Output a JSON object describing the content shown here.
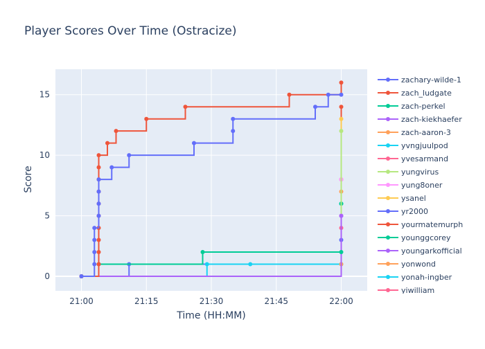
{
  "chart_data": {
    "type": "line",
    "line_shape": "step-after",
    "title": "Player Scores Over Time (Ostracize)",
    "xlabel": "Time (HH:MM)",
    "ylabel": "Score",
    "xlim": [
      "21:00",
      "22:00"
    ],
    "ylim": [
      -1.2,
      17.1
    ],
    "x_ticks": [
      "21:00",
      "21:15",
      "21:30",
      "21:45",
      "22:00"
    ],
    "y_ticks": [
      0,
      5,
      10,
      15
    ],
    "grid": true,
    "legend_position": "right",
    "colors": {
      "plot_background": "#e5ecf6",
      "grid": "#ffffff",
      "text": "#2a3f5f"
    },
    "series": [
      {
        "name": "zachary-wilde-1",
        "color": "#636efa",
        "points": [
          [
            "21:00",
            0
          ],
          [
            "21:03",
            1
          ],
          [
            "21:03",
            2
          ],
          [
            "21:03",
            3
          ],
          [
            "21:03",
            4
          ],
          [
            "21:04",
            5
          ],
          [
            "21:04",
            6
          ],
          [
            "21:04",
            7
          ],
          [
            "21:04",
            8
          ],
          [
            "21:07",
            9
          ],
          [
            "21:11",
            10
          ],
          [
            "21:26",
            11
          ],
          [
            "21:35",
            12
          ],
          [
            "21:35",
            13
          ],
          [
            "21:54",
            14
          ],
          [
            "21:57",
            15
          ],
          [
            "22:00",
            15
          ]
        ]
      },
      {
        "name": "zach_ludgate",
        "color": "#ef553b",
        "points": [
          [
            "21:00",
            0
          ],
          [
            "21:04",
            1
          ],
          [
            "21:04",
            2
          ],
          [
            "21:04",
            3
          ],
          [
            "21:04",
            4
          ],
          [
            "21:04",
            5
          ],
          [
            "21:04",
            6
          ],
          [
            "21:04",
            7
          ],
          [
            "21:04",
            8
          ],
          [
            "21:04",
            9
          ],
          [
            "21:04",
            10
          ],
          [
            "21:06",
            11
          ],
          [
            "21:08",
            12
          ],
          [
            "21:15",
            13
          ],
          [
            "21:24",
            14
          ],
          [
            "21:48",
            15
          ],
          [
            "22:00",
            16
          ]
        ]
      },
      {
        "name": "zach-perkel",
        "color": "#00cc96",
        "points": [
          [
            "21:00",
            0
          ],
          [
            "21:04",
            1
          ],
          [
            "21:28",
            2
          ],
          [
            "22:00",
            2
          ]
        ]
      },
      {
        "name": "zach-kiekhaefer",
        "color": "#ab63fa",
        "points": [
          [
            "21:00",
            0
          ],
          [
            "22:00",
            5
          ]
        ]
      },
      {
        "name": "zach-aaron-3",
        "color": "#ffa15a",
        "points": [
          [
            "21:00",
            0
          ],
          [
            "22:00",
            1
          ]
        ]
      },
      {
        "name": "yvngjuulpod",
        "color": "#19d3f3",
        "points": [
          [
            "21:00",
            0
          ],
          [
            "21:29",
            1
          ],
          [
            "21:39",
            1
          ],
          [
            "22:00",
            1
          ]
        ]
      },
      {
        "name": "yvesarmand",
        "color": "#ff6692",
        "points": [
          [
            "21:00",
            0
          ],
          [
            "22:00",
            4
          ]
        ]
      },
      {
        "name": "yungvirus",
        "color": "#b6e880",
        "points": [
          [
            "21:00",
            0
          ],
          [
            "22:00",
            12
          ]
        ]
      },
      {
        "name": "yung8oner",
        "color": "#ff97ff",
        "points": [
          [
            "21:00",
            0
          ],
          [
            "22:00",
            8
          ]
        ]
      },
      {
        "name": "ysanel",
        "color": "#fecb52",
        "points": [
          [
            "21:00",
            0
          ],
          [
            "22:00",
            13
          ]
        ]
      },
      {
        "name": "yr2000",
        "color": "#636efa",
        "points": [
          [
            "21:00",
            0
          ],
          [
            "21:11",
            1
          ],
          [
            "22:00",
            3
          ]
        ]
      },
      {
        "name": "yourmatemurph",
        "color": "#ef553b",
        "points": [
          [
            "21:00",
            0
          ],
          [
            "22:00",
            14
          ]
        ]
      },
      {
        "name": "younggcorey",
        "color": "#00cc96",
        "points": [
          [
            "21:00",
            0
          ],
          [
            "22:00",
            6
          ]
        ]
      },
      {
        "name": "youngarkofficial",
        "color": "#ab63fa",
        "points": [
          [
            "21:00",
            0
          ],
          [
            "22:00",
            5
          ]
        ]
      },
      {
        "name": "yonwond",
        "color": "#ffa15a",
        "points": [
          [
            "21:00",
            0
          ],
          [
            "22:00",
            7
          ]
        ]
      },
      {
        "name": "yonah-ingber",
        "color": "#19d3f3",
        "points": [
          [
            "21:00",
            0
          ],
          [
            "22:00",
            6
          ]
        ]
      },
      {
        "name": "yiwilliam",
        "color": "#ff6692",
        "points": [
          [
            "21:00",
            0
          ],
          [
            "22:00",
            8
          ]
        ]
      }
    ]
  }
}
